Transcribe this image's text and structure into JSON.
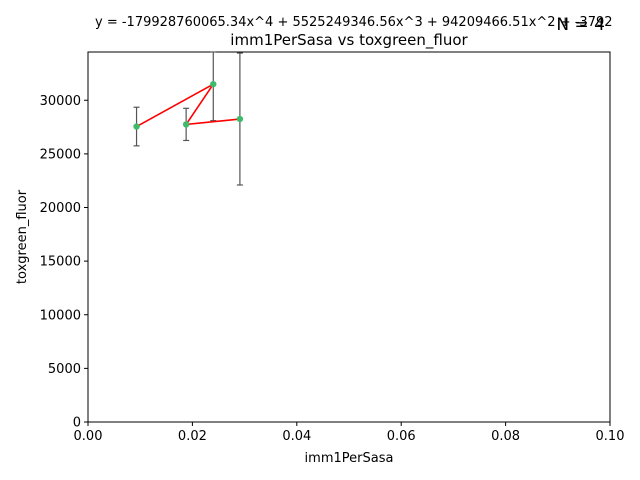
{
  "chart_data": {
    "type": "scatter",
    "title": "imm1PerSasa vs toxgreen_fluor",
    "equation": "y = -179928760065.34x^4 + 5525249346.56x^3 + 94209466.51x^2 + -3792",
    "annotation": "N = 4",
    "xlabel": "imm1PerSasa",
    "ylabel": "toxgreen_fluor",
    "xlim": [
      0,
      0.1
    ],
    "ylim": [
      0,
      34500
    ],
    "xticks": [
      0,
      0.02,
      0.04,
      0.06,
      0.08,
      0.1
    ],
    "xtick_labels": [
      "0.00",
      "0.02",
      "0.04",
      "0.06",
      "0.08",
      "0.10"
    ],
    "yticks": [
      0,
      5000,
      10000,
      15000,
      20000,
      25000,
      30000
    ],
    "ytick_labels": [
      "0",
      "5000",
      "10000",
      "15000",
      "20000",
      "25000",
      "30000"
    ],
    "grid": false,
    "points": [
      {
        "x": 0.0093,
        "y": 27550,
        "err_low": 25750,
        "err_high": 29350
      },
      {
        "x": 0.0188,
        "y": 27750,
        "err_low": 26250,
        "err_high": 29250
      },
      {
        "x": 0.024,
        "y": 31500,
        "err_low": 28100,
        "err_high": 34500
      },
      {
        "x": 0.0291,
        "y": 28250,
        "err_low": 22100,
        "err_high": 34400
      }
    ],
    "fit_line_order": [
      0,
      2,
      1,
      3
    ],
    "colors": {
      "point": "#3dba6a",
      "fit_line": "#ff0000",
      "errorbar": "#555555"
    }
  }
}
